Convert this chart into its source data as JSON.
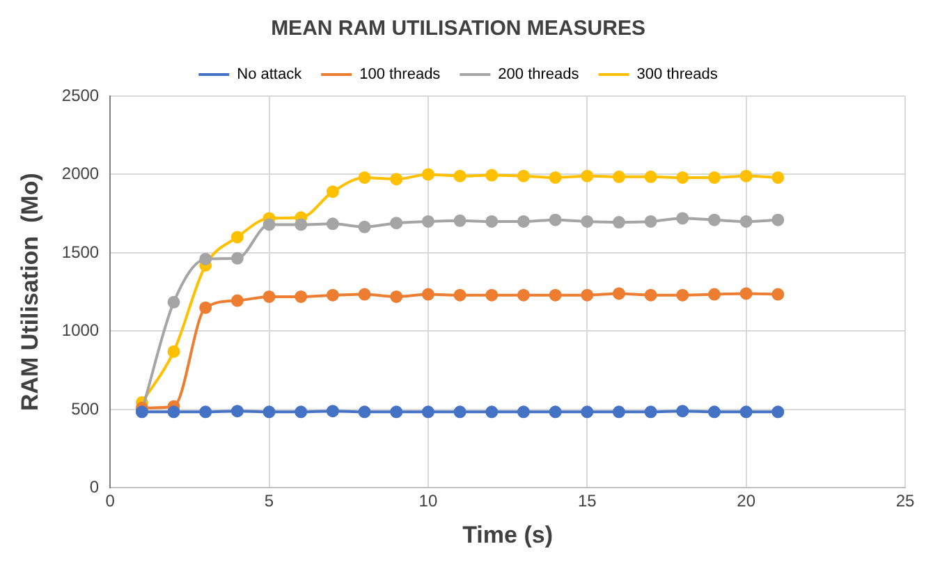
{
  "chart_data": {
    "type": "line",
    "title": "MEAN RAM UTILISATION MEASURES",
    "xlabel": "Time (s)",
    "ylabel": "RAM Utilisation  (Mo)",
    "x": [
      1,
      2,
      3,
      4,
      5,
      6,
      7,
      8,
      9,
      10,
      11,
      12,
      13,
      14,
      15,
      16,
      17,
      18,
      19,
      20,
      21
    ],
    "series": [
      {
        "name": "No attack",
        "color": "#4472c4",
        "values": [
          485,
          485,
          485,
          490,
          485,
          485,
          490,
          485,
          485,
          485,
          485,
          485,
          485,
          485,
          485,
          485,
          485,
          490,
          485,
          485,
          485
        ]
      },
      {
        "name": "100 threads",
        "color": "#ed7d31",
        "values": [
          510,
          520,
          1150,
          1195,
          1220,
          1220,
          1230,
          1235,
          1220,
          1235,
          1230,
          1230,
          1230,
          1230,
          1230,
          1240,
          1230,
          1230,
          1235,
          1240,
          1235
        ]
      },
      {
        "name": "200 threads",
        "color": "#a5a5a5",
        "values": [
          490,
          1185,
          1460,
          1465,
          1680,
          1680,
          1685,
          1665,
          1690,
          1700,
          1705,
          1700,
          1700,
          1710,
          1700,
          1695,
          1700,
          1720,
          1710,
          1700,
          1710
        ]
      },
      {
        "name": "300 threads",
        "color": "#ffc000",
        "values": [
          545,
          870,
          1420,
          1600,
          1720,
          1725,
          1890,
          1980,
          1970,
          2000,
          1990,
          1995,
          1990,
          1980,
          1990,
          1985,
          1985,
          1980,
          1980,
          1990,
          1980
        ]
      }
    ],
    "xlim": [
      0,
      25
    ],
    "xticks": [
      0,
      5,
      10,
      15,
      20,
      25
    ],
    "ylim": [
      0,
      2500
    ],
    "yticks": [
      0,
      500,
      1000,
      1500,
      2000,
      2500
    ],
    "grid": true,
    "legend": "top",
    "marker": "circle",
    "line_style": "solid"
  }
}
